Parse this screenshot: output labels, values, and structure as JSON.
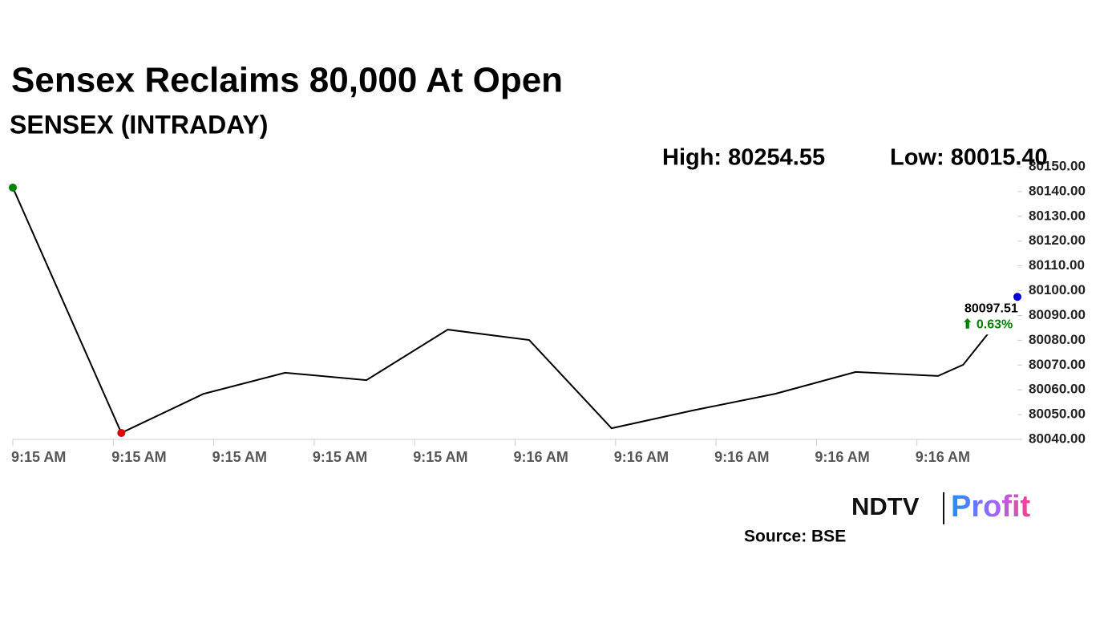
{
  "chart_data": {
    "type": "line",
    "title": "Sensex Reclaims 80,000 At Open",
    "subtitle": "SENSEX (INTRADAY)",
    "high_label": "High: 80254.55",
    "low_label": "Low: 80015.40",
    "x": [
      0,
      1.08,
      1.9,
      2.71,
      3.52,
      4.33,
      5.14,
      5.96,
      6.77,
      7.59,
      8.39,
      9.21,
      9.46,
      10
    ],
    "series": [
      {
        "name": "SENSEX",
        "color": "#000000",
        "values": [
          80141.6,
          80042.6,
          80058.4,
          80066.9,
          80063.9,
          80084.3,
          80080.1,
          80044.5,
          80051.7,
          80058.4,
          80067.2,
          80065.6,
          80070.1,
          80097.51
        ]
      }
    ],
    "first_color": "#008000",
    "low_color": "#e00000",
    "last_color": "#0000cc",
    "change_label": "⬆ 0.63%",
    "change_color": "#008000",
    "xlim": [
      0,
      10
    ],
    "xticks": [
      {
        "value": 0,
        "label": "9:15 AM"
      },
      {
        "value": 1,
        "label": "9:15 AM"
      },
      {
        "value": 2,
        "label": "9:15 AM"
      },
      {
        "value": 3,
        "label": "9:15 AM"
      },
      {
        "value": 4,
        "label": "9:15 AM"
      },
      {
        "value": 5,
        "label": "9:16 AM"
      },
      {
        "value": 6,
        "label": "9:16 AM"
      },
      {
        "value": 7,
        "label": "9:16 AM"
      },
      {
        "value": 8,
        "label": "9:16 AM"
      },
      {
        "value": 9,
        "label": "9:16 AM"
      }
    ],
    "ylim": [
      80040,
      80150
    ],
    "yticks": [
      {
        "value": 80040,
        "label": "80040.00"
      },
      {
        "value": 80050,
        "label": "80050.00"
      },
      {
        "value": 80060,
        "label": "80060.00"
      },
      {
        "value": 80070,
        "label": "80070.00"
      },
      {
        "value": 80080,
        "label": "80080.00"
      },
      {
        "value": 80090,
        "label": "80090.00"
      },
      {
        "value": 80100,
        "label": "80100.00"
      },
      {
        "value": 80110,
        "label": "80110.00"
      },
      {
        "value": 80120,
        "label": "80120.00"
      },
      {
        "value": 80130,
        "label": "80130.00"
      },
      {
        "value": 80140,
        "label": "80140.00"
      },
      {
        "value": 80150,
        "label": "80150.00"
      }
    ],
    "source": "Source: BSE",
    "logo": {
      "left": "NDTV",
      "right": "Profit"
    }
  }
}
